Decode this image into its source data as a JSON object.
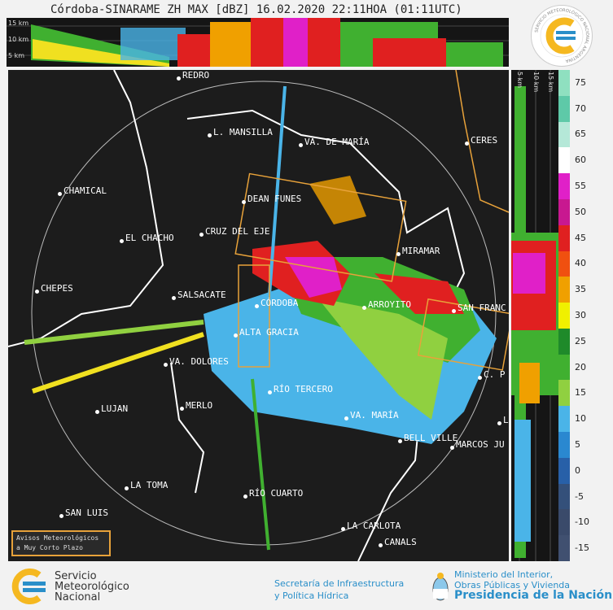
{
  "title": "Córdoba-SINARAME ZH MAX [dBZ] 16.02.2020 22:11HOA (01:11UTC)",
  "top_panel": {
    "height_labels": [
      "15 km",
      "10 km",
      "5 km"
    ]
  },
  "side_panel": {
    "height_labels": [
      "5 km",
      "10 km",
      "15 km"
    ]
  },
  "badge": {
    "text": "SERVICIO METEOROLÓGICO NACIONAL ARGENTINA"
  },
  "cities": [
    "REDRO",
    "L. MANSILLA",
    "VA. DE MARÍA",
    "CERES",
    "CHAMICAL",
    "DEAN FUNES",
    "EL CHACHO",
    "CRUZ DEL EJE",
    "MIRAMAR",
    "CHEPES",
    "SALSACATE",
    "CÓRDOBA",
    "ARROYITO",
    "SAN FRANC",
    "ALTA GRACIA",
    "VA. DOLORES",
    "C. P",
    "RÍO TERCERO",
    "LUJAN",
    "MERLO",
    "VA. MARÍA",
    "BELL VILLE",
    "MARCOS JU",
    "L",
    "LA TOMA",
    "RÍO CUARTO",
    "SAN LUIS",
    "LA CARLOTA",
    "CANALS"
  ],
  "scale": {
    "unit": "dBZ",
    "ticks": [
      "75",
      "70",
      "65",
      "60",
      "55",
      "50",
      "45",
      "40",
      "35",
      "30",
      "25",
      "20",
      "15",
      "10",
      "5",
      "0",
      "-5",
      "-10",
      "-15"
    ],
    "colors": [
      "#8fe0c0",
      "#5ec9a8",
      "#b5e8d8",
      "#ffffff",
      "#e020c8",
      "#c81890",
      "#e02020",
      "#f05010",
      "#f0a000",
      "#f0f000",
      "#1f8a2a",
      "#40b030",
      "#90d040",
      "#4ab4e8",
      "#2a88d0",
      "#2860a8",
      "#34507a",
      "#3a4a6a",
      "#405070"
    ]
  },
  "avisos": {
    "line1": "Avisos Meteorológicos",
    "line2": "a Muy Corto Plazo"
  },
  "footer": {
    "smn": [
      "Servicio",
      "Meteorológico",
      "Nacional"
    ],
    "secretaria": [
      "Secretaría de Infraestructura",
      "y Política Hídrica"
    ],
    "ministerio": [
      "Ministerio del Interior,",
      "Obras Públicas y Vivienda",
      "Presidencia de la Nación"
    ]
  }
}
